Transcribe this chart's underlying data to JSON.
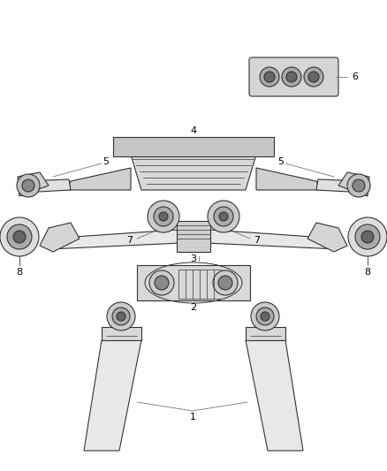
{
  "background_color": "#ffffff",
  "line_color": "#333333",
  "fig_width": 4.38,
  "fig_height": 5.33,
  "dpi": 100
}
